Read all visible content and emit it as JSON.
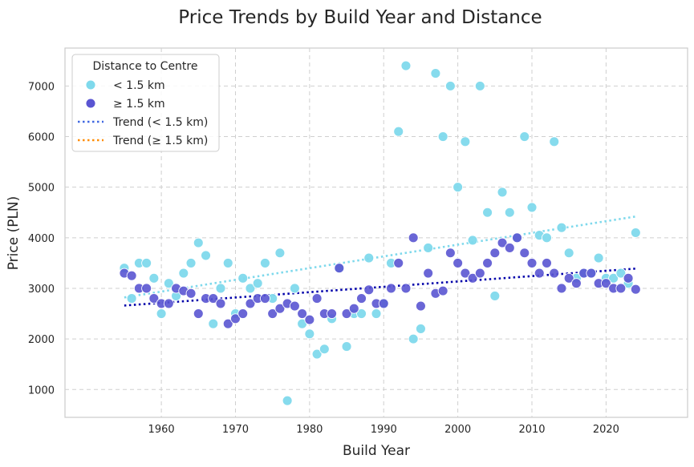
{
  "chart_data": {
    "type": "scatter",
    "title": "Price Trends by Build Year and Distance",
    "xlabel": "Build Year",
    "ylabel": "Price (PLN)",
    "xlim": [
      1947,
      2031
    ],
    "ylim": [
      450,
      7750
    ],
    "x_ticks": [
      1960,
      1970,
      1980,
      1990,
      2000,
      2010,
      2020
    ],
    "y_ticks": [
      1000,
      2000,
      3000,
      4000,
      5000,
      6000,
      7000
    ],
    "grid": true,
    "legend": {
      "title": "Distance to Centre",
      "placement": "top-left"
    },
    "series": [
      {
        "name": "< 1.5 km",
        "kind": "scatter",
        "color": "#7fd9ec",
        "points": [
          [
            1955,
            3400
          ],
          [
            1956,
            2800
          ],
          [
            1957,
            3500
          ],
          [
            1958,
            3500
          ],
          [
            1959,
            3200
          ],
          [
            1960,
            2500
          ],
          [
            1961,
            3100
          ],
          [
            1962,
            2850
          ],
          [
            1963,
            3300
          ],
          [
            1964,
            3500
          ],
          [
            1965,
            3900
          ],
          [
            1966,
            3650
          ],
          [
            1967,
            2300
          ],
          [
            1968,
            3000
          ],
          [
            1969,
            3500
          ],
          [
            1970,
            2500
          ],
          [
            1971,
            3200
          ],
          [
            1972,
            3000
          ],
          [
            1973,
            3100
          ],
          [
            1974,
            3500
          ],
          [
            1975,
            2800
          ],
          [
            1976,
            3700
          ],
          [
            1977,
            780
          ],
          [
            1978,
            3000
          ],
          [
            1979,
            2300
          ],
          [
            1980,
            2100
          ],
          [
            1981,
            1700
          ],
          [
            1982,
            1800
          ],
          [
            1983,
            2400
          ],
          [
            1984,
            3400
          ],
          [
            1985,
            1850
          ],
          [
            1986,
            2500
          ],
          [
            1987,
            2500
          ],
          [
            1988,
            3600
          ],
          [
            1989,
            2500
          ],
          [
            1990,
            2700
          ],
          [
            1991,
            3500
          ],
          [
            1992,
            6100
          ],
          [
            1993,
            7400
          ],
          [
            1994,
            2000
          ],
          [
            1995,
            2200
          ],
          [
            1996,
            3800
          ],
          [
            1997,
            7250
          ],
          [
            1998,
            6000
          ],
          [
            1999,
            7000
          ],
          [
            2000,
            5000
          ],
          [
            2001,
            5900
          ],
          [
            2002,
            3950
          ],
          [
            2003,
            7000
          ],
          [
            2004,
            4500
          ],
          [
            2005,
            2850
          ],
          [
            2006,
            4900
          ],
          [
            2007,
            4500
          ],
          [
            2008,
            4000
          ],
          [
            2009,
            6000
          ],
          [
            2010,
            4600
          ],
          [
            2011,
            4050
          ],
          [
            2012,
            4000
          ],
          [
            2013,
            5900
          ],
          [
            2014,
            4200
          ],
          [
            2015,
            3700
          ],
          [
            2016,
            3200
          ],
          [
            2017,
            3300
          ],
          [
            2018,
            3300
          ],
          [
            2019,
            3600
          ],
          [
            2020,
            3200
          ],
          [
            2021,
            3200
          ],
          [
            2022,
            3300
          ],
          [
            2023,
            3100
          ],
          [
            2024,
            4100
          ]
        ]
      },
      {
        "name": "≥ 1.5 km",
        "kind": "scatter",
        "color": "#5a55d2",
        "points": [
          [
            1955,
            3300
          ],
          [
            1956,
            3250
          ],
          [
            1957,
            3000
          ],
          [
            1958,
            3000
          ],
          [
            1959,
            2800
          ],
          [
            1960,
            2700
          ],
          [
            1961,
            2700
          ],
          [
            1962,
            3000
          ],
          [
            1963,
            2950
          ],
          [
            1964,
            2900
          ],
          [
            1965,
            2500
          ],
          [
            1966,
            2800
          ],
          [
            1967,
            2800
          ],
          [
            1968,
            2700
          ],
          [
            1969,
            2300
          ],
          [
            1970,
            2400
          ],
          [
            1971,
            2500
          ],
          [
            1972,
            2700
          ],
          [
            1973,
            2800
          ],
          [
            1974,
            2800
          ],
          [
            1975,
            2500
          ],
          [
            1976,
            2600
          ],
          [
            1977,
            2700
          ],
          [
            1978,
            2650
          ],
          [
            1979,
            2500
          ],
          [
            1980,
            2380
          ],
          [
            1981,
            2800
          ],
          [
            1982,
            2500
          ],
          [
            1983,
            2500
          ],
          [
            1984,
            3400
          ],
          [
            1985,
            2500
          ],
          [
            1986,
            2600
          ],
          [
            1987,
            2800
          ],
          [
            1988,
            2970
          ],
          [
            1989,
            2700
          ],
          [
            1990,
            2700
          ],
          [
            1991,
            3000
          ],
          [
            1992,
            3500
          ],
          [
            1993,
            3000
          ],
          [
            1994,
            4000
          ],
          [
            1995,
            2650
          ],
          [
            1996,
            3300
          ],
          [
            1997,
            2900
          ],
          [
            1998,
            2950
          ],
          [
            1999,
            3700
          ],
          [
            2000,
            3500
          ],
          [
            2001,
            3300
          ],
          [
            2002,
            3200
          ],
          [
            2003,
            3300
          ],
          [
            2004,
            3500
          ],
          [
            2005,
            3700
          ],
          [
            2006,
            3900
          ],
          [
            2007,
            3800
          ],
          [
            2008,
            4000
          ],
          [
            2009,
            3700
          ],
          [
            2010,
            3500
          ],
          [
            2011,
            3300
          ],
          [
            2012,
            3500
          ],
          [
            2013,
            3300
          ],
          [
            2014,
            3000
          ],
          [
            2015,
            3200
          ],
          [
            2016,
            3100
          ],
          [
            2017,
            3300
          ],
          [
            2018,
            3300
          ],
          [
            2019,
            3100
          ],
          [
            2020,
            3100
          ],
          [
            2021,
            3000
          ],
          [
            2022,
            3000
          ],
          [
            2023,
            3200
          ],
          [
            2024,
            2980
          ]
        ]
      },
      {
        "name": "Trend (< 1.5 km)",
        "kind": "line",
        "color": "#7fd9ec",
        "legend_color": "#4169e1",
        "points": [
          [
            1955,
            2820
          ],
          [
            2024,
            4420
          ]
        ]
      },
      {
        "name": "Trend (≥ 1.5 km)",
        "kind": "line",
        "color": "#0000aa",
        "legend_color": "#ff8c00",
        "points": [
          [
            1955,
            2660
          ],
          [
            2024,
            3390
          ]
        ]
      }
    ]
  }
}
